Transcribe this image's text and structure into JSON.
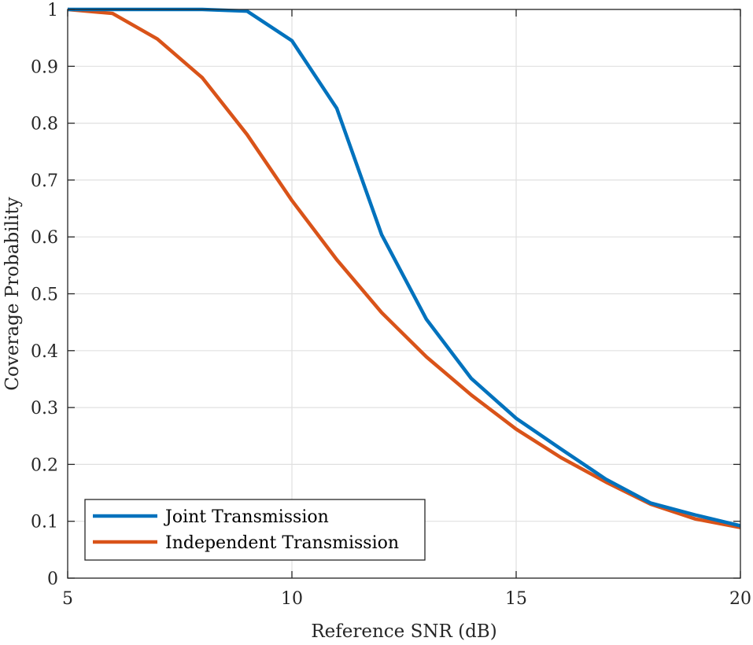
{
  "chart_data": {
    "type": "line",
    "title": "",
    "xlabel": "Reference SNR (dB)",
    "ylabel": "Coverage Probability",
    "xlim": [
      5,
      20
    ],
    "ylim": [
      0,
      1
    ],
    "xticks": [
      5,
      10,
      15,
      20
    ],
    "yticks": [
      0,
      0.1,
      0.2,
      0.3,
      0.4,
      0.5,
      0.6,
      0.7,
      0.8,
      0.9,
      1
    ],
    "xtick_labels": [
      "5",
      "10",
      "15",
      "20"
    ],
    "ytick_labels": [
      "0",
      "0.1",
      "0.2",
      "0.3",
      "0.4",
      "0.5",
      "0.6",
      "0.7",
      "0.8",
      "0.9",
      "1"
    ],
    "grid": true,
    "legend_position": "bottom-left",
    "x": [
      5,
      6,
      7,
      8,
      9,
      10,
      11,
      12,
      13,
      14,
      15,
      16,
      17,
      18,
      19,
      20
    ],
    "series": [
      {
        "name": "Joint Transmission",
        "color": "#0072BD",
        "values": [
          1.0,
          1.0,
          1.0,
          1.0,
          0.997,
          0.945,
          0.826,
          0.604,
          0.455,
          0.351,
          0.281,
          0.227,
          0.174,
          0.132,
          0.111,
          0.092
        ]
      },
      {
        "name": "Independent Transmission",
        "color": "#D95319",
        "values": [
          1.0,
          0.993,
          0.948,
          0.88,
          0.78,
          0.664,
          0.56,
          0.467,
          0.389,
          0.322,
          0.262,
          0.212,
          0.169,
          0.13,
          0.104,
          0.089
        ]
      }
    ]
  }
}
